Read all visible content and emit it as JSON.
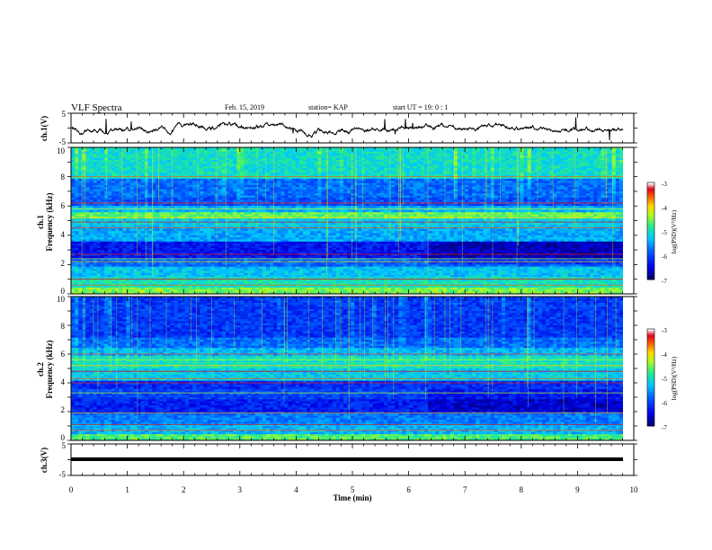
{
  "header": {
    "title": "VLF Spectra",
    "date": "Feb. 15, 2019",
    "station": "station= KAP",
    "start": "start  UT =   19: 0  : 1"
  },
  "chart_data": [
    {
      "type": "line",
      "id": "ch1-waveform",
      "ylabel": "ch.1(V)",
      "ylim": [
        -5,
        5
      ],
      "yticks": [
        "5",
        "-5"
      ],
      "xlim": [
        0,
        10
      ],
      "description_series_color": "#000000"
    },
    {
      "type": "heatmap",
      "id": "ch1-spectrogram",
      "ylabel": "ch.1\nFrequency (kHz)",
      "ylabel_line1": "ch.1",
      "ylabel_line2": "Frequency (kHz)",
      "ylim": [
        0,
        10
      ],
      "yticks": [
        "0",
        "2",
        "4",
        "6",
        "8",
        "10"
      ],
      "xlim": [
        0,
        9.8
      ],
      "colorbar": {
        "label": "log(PSD)(V²/Hz)",
        "range": [
          -7,
          -3
        ],
        "ticks": [
          "-3",
          "-4",
          "-5",
          "-6",
          "-7"
        ]
      }
    },
    {
      "type": "heatmap",
      "id": "ch2-spectrogram",
      "ylabel_line1": "ch.2",
      "ylabel_line2": "Frequency (kHz)",
      "ylim": [
        0,
        10
      ],
      "yticks": [
        "0",
        "2",
        "4",
        "6",
        "8",
        "10"
      ],
      "xlim": [
        0,
        9.8
      ],
      "colorbar": {
        "label": "log(PSD)(V²/Hz)",
        "range": [
          -7,
          -3
        ],
        "ticks": [
          "-3",
          "-4",
          "-5",
          "-6",
          "-7"
        ]
      }
    },
    {
      "type": "line",
      "id": "ch3-waveform",
      "ylabel": "ch.3(V)",
      "ylim": [
        -5,
        5
      ],
      "yticks": [
        "5",
        "-5"
      ],
      "xlim": [
        0,
        10
      ],
      "flat_value": -1.5
    }
  ],
  "xaxis": {
    "label": "Time (min)",
    "ticks": [
      "0",
      "1",
      "2",
      "3",
      "4",
      "5",
      "6",
      "7",
      "8",
      "9",
      "10"
    ]
  }
}
